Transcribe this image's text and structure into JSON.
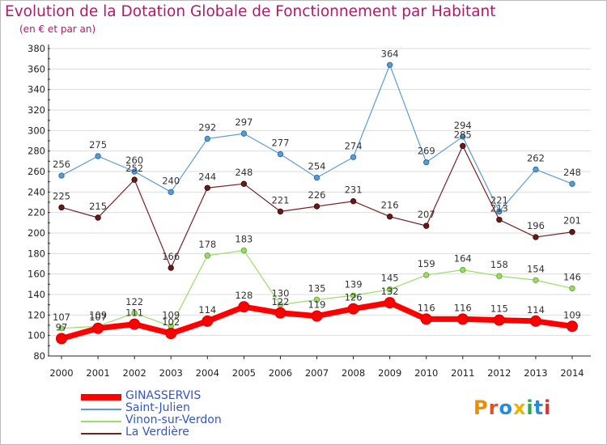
{
  "title": "Evolution de la Dotation Globale de Fonctionnement par Habitant",
  "subtitle": "(en € et par an)",
  "logo_text": "Proxiti",
  "chart_data": {
    "type": "line",
    "title": "Evolution de la Dotation Globale de Fonctionnement par Habitant",
    "subtitle": "(en € et par an)",
    "x": [
      "2000",
      "2001",
      "2002",
      "2003",
      "2004",
      "2005",
      "2006",
      "2007",
      "2008",
      "2009",
      "2010",
      "2011",
      "2012",
      "2013",
      "2014"
    ],
    "ylim": [
      80,
      380
    ],
    "yticks": [
      80,
      100,
      120,
      140,
      160,
      180,
      200,
      220,
      240,
      260,
      280,
      300,
      320,
      340,
      360,
      380
    ],
    "grid": "horizontal",
    "legend_position": "bottom-left",
    "series": [
      {
        "name": "GINASSERVIS",
        "color": "#ff0000",
        "values": [
          97,
          107,
          111,
          102,
          114,
          128,
          122,
          119,
          126,
          132,
          116,
          116,
          115,
          114,
          109
        ]
      },
      {
        "name": "Saint-Julien",
        "color": "#5b9bd5",
        "values": [
          256,
          275,
          260,
          240,
          292,
          297,
          277,
          254,
          274,
          364,
          269,
          294,
          221,
          262,
          248
        ]
      },
      {
        "name": "Vinon-sur-Verdon",
        "color": "#99dd66",
        "values": [
          107,
          109,
          122,
          109,
          178,
          183,
          130,
          135,
          139,
          145,
          159,
          164,
          158,
          154,
          146
        ]
      },
      {
        "name": "La Verdière",
        "color": "#7a1f1f",
        "values": [
          225,
          215,
          252,
          166,
          244,
          248,
          221,
          226,
          231,
          216,
          207,
          285,
          213,
          196,
          201
        ]
      }
    ],
    "data_labels": {
      "GINASSERVIS": [
        "97",
        "107",
        "111",
        "102",
        "114",
        "128",
        "122",
        "119",
        "126",
        "132",
        "116",
        "116",
        "115",
        "114",
        "109"
      ],
      "Saint-Julien": [
        "256",
        "275",
        "260",
        "240",
        "292",
        "297",
        "277",
        "254",
        "274",
        "364",
        "269",
        "294",
        "221",
        "262",
        "248"
      ],
      "Vinon-sur-Verdon": [
        "107",
        "109",
        "122",
        "109",
        "178",
        "183",
        "130",
        "135",
        "139",
        "145",
        "159",
        "164",
        "158",
        "154",
        "146"
      ],
      "La Verdière": [
        "225",
        "215",
        "252",
        "166",
        "244",
        "248",
        "221",
        "226",
        "231",
        "216",
        "207",
        "285",
        "213",
        "196",
        "201"
      ]
    }
  }
}
